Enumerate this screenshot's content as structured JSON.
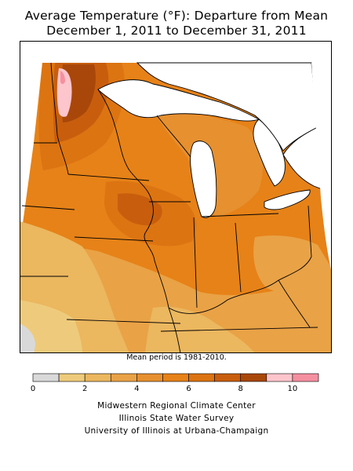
{
  "title": {
    "line1": "Average Temperature (°F): Departure from Mean",
    "line2": "December 1, 2011 to December 31, 2011"
  },
  "note": "Mean period is 1981-2010.",
  "legend": {
    "bins": [
      {
        "from": 0,
        "to": 1,
        "color": "#d9d9d9"
      },
      {
        "from": 1,
        "to": 2,
        "color": "#eecb7c"
      },
      {
        "from": 2,
        "to": 3,
        "color": "#ebb75f"
      },
      {
        "from": 3,
        "to": 4,
        "color": "#e9a246"
      },
      {
        "from": 4,
        "to": 5,
        "color": "#e69030"
      },
      {
        "from": 5,
        "to": 6,
        "color": "#e68218"
      },
      {
        "from": 6,
        "to": 7,
        "color": "#dc7412"
      },
      {
        "from": 7,
        "to": 8,
        "color": "#c85e0d"
      },
      {
        "from": 8,
        "to": 9,
        "color": "#a9470a"
      },
      {
        "from": 9,
        "to": 10,
        "color": "#fdc5cc"
      },
      {
        "from": 10,
        "to": 11,
        "color": "#f590a0"
      }
    ],
    "tick_labels": [
      "0",
      "2",
      "4",
      "6",
      "8",
      "10"
    ],
    "tick_values": [
      0,
      2,
      4,
      6,
      8,
      10
    ]
  },
  "credits": [
    "Midwestern Regional Climate Center",
    "Illinois State Water Survey",
    "University of Illinois at Urbana-Champaign"
  ],
  "map": {
    "region": "Upper Midwest, United States",
    "water_color": "#ffffff",
    "border_color": "#000000"
  }
}
